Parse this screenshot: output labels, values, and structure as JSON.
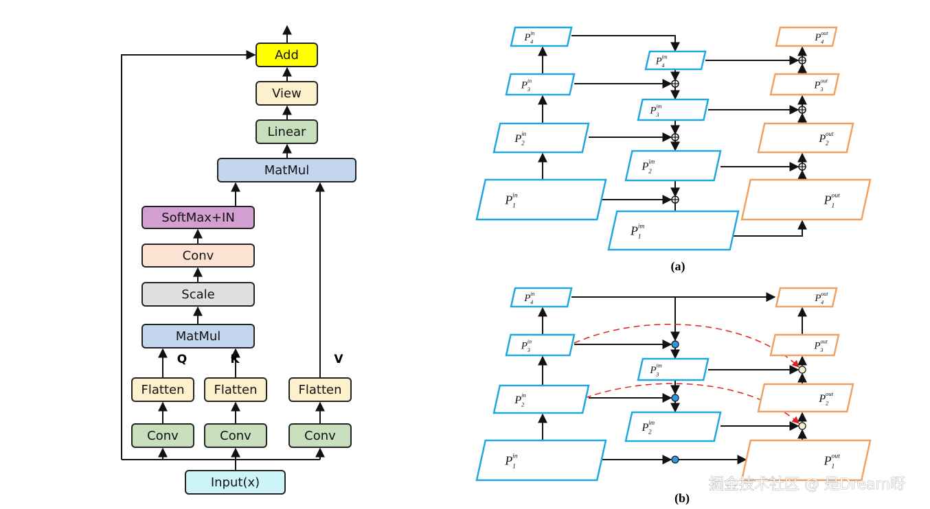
{
  "left": {
    "nodes": [
      "Add",
      "View",
      "Linear",
      "MatMul",
      "SoftMax+IN",
      "Conv",
      "Scale",
      "MatMul",
      "Flatten",
      "Flatten",
      "Flatten",
      "Conv",
      "Conv",
      "Conv",
      "Input(x)"
    ],
    "branch_labels": [
      "Q",
      "K",
      "V"
    ]
  },
  "panel_a": {
    "caption": "(a)",
    "nodes": [
      {
        "symbol": "P",
        "sup": "in",
        "sub": "4"
      },
      {
        "symbol": "P",
        "sup": "in",
        "sub": "3"
      },
      {
        "symbol": "P",
        "sup": "in",
        "sub": "2"
      },
      {
        "symbol": "P",
        "sup": "in",
        "sub": "1"
      },
      {
        "symbol": "P",
        "sup": "im",
        "sub": "4"
      },
      {
        "symbol": "P",
        "sup": "im",
        "sub": "3"
      },
      {
        "symbol": "P",
        "sup": "im",
        "sub": "2"
      },
      {
        "symbol": "P",
        "sup": "im",
        "sub": "1"
      },
      {
        "symbol": "P",
        "sup": "out",
        "sub": "4"
      },
      {
        "symbol": "P",
        "sup": "out",
        "sub": "3"
      },
      {
        "symbol": "P",
        "sup": "out",
        "sub": "2"
      },
      {
        "symbol": "P",
        "sup": "out",
        "sub": "1"
      }
    ]
  },
  "panel_b": {
    "caption": "(b)",
    "nodes": [
      {
        "symbol": "P",
        "sup": "in",
        "sub": "4"
      },
      {
        "symbol": "P",
        "sup": "in",
        "sub": "3"
      },
      {
        "symbol": "P",
        "sup": "in",
        "sub": "2"
      },
      {
        "symbol": "P",
        "sup": "in",
        "sub": "1"
      },
      {
        "symbol": "P",
        "sup": "im",
        "sub": "3"
      },
      {
        "symbol": "P",
        "sup": "im",
        "sub": "2"
      },
      {
        "symbol": "P",
        "sup": "out",
        "sub": "4"
      },
      {
        "symbol": "P",
        "sup": "out",
        "sub": "3"
      },
      {
        "symbol": "P",
        "sup": "out",
        "sub": "2"
      },
      {
        "symbol": "P",
        "sup": "out",
        "sub": "1"
      }
    ]
  },
  "watermark": "掘金技术社区 @ 是Dream呀"
}
